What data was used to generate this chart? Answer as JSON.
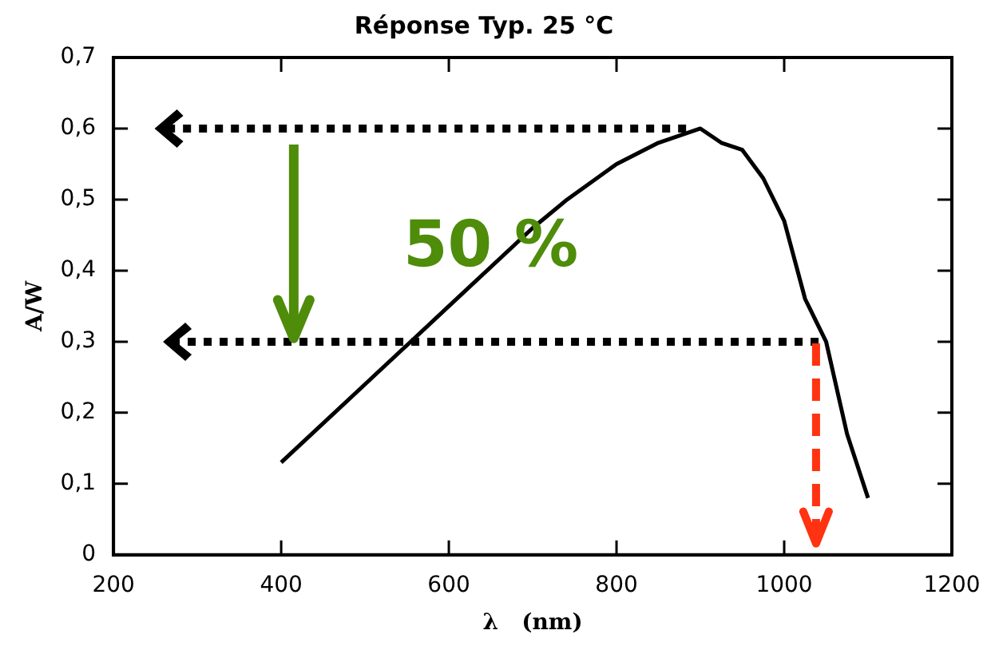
{
  "chart_data": {
    "type": "line",
    "title": "Réponse Typ. 25 °C",
    "xlabel": "λ   (nm)",
    "ylabel": "A/W",
    "annotations": [
      "50 %"
    ],
    "series": [
      {
        "color": "#000000",
        "x": [
          400,
          500,
          600,
          700,
          741,
          800,
          850,
          900,
          925,
          950,
          975,
          1000,
          1025,
          1050,
          1075,
          1100
        ],
        "values": [
          0.13,
          0.24,
          0.35,
          0.46,
          0.5,
          0.55,
          0.58,
          0.6,
          0.58,
          0.57,
          0.53,
          0.47,
          0.36,
          0.3,
          0.17,
          0.08
        ]
      }
    ],
    "xlim": [
      200,
      1200
    ],
    "xticks": [
      200,
      400,
      600,
      800,
      1000,
      1200
    ],
    "ylim": [
      0,
      0.7
    ],
    "yticks": [
      0,
      {
        "value": 0.1,
        "label": "0,1"
      },
      {
        "value": 0.2,
        "label": "0,2"
      },
      {
        "value": 0.3,
        "label": "0,3"
      },
      {
        "value": 0.4,
        "label": "0,4"
      },
      {
        "value": 0.5,
        "label": "0,5"
      },
      {
        "value": 0.6,
        "label": "0,6"
      },
      {
        "value": 0.7,
        "label": "0,7"
      }
    ],
    "ref_lines": [
      {
        "axis": "y",
        "value": 0.6,
        "line_style": "dotted"
      },
      {
        "axis": "y",
        "value": 0.3,
        "line_style": "dotted"
      }
    ],
    "grid": false,
    "legend": false,
    "marker": "none",
    "line_style": "solid"
  }
}
